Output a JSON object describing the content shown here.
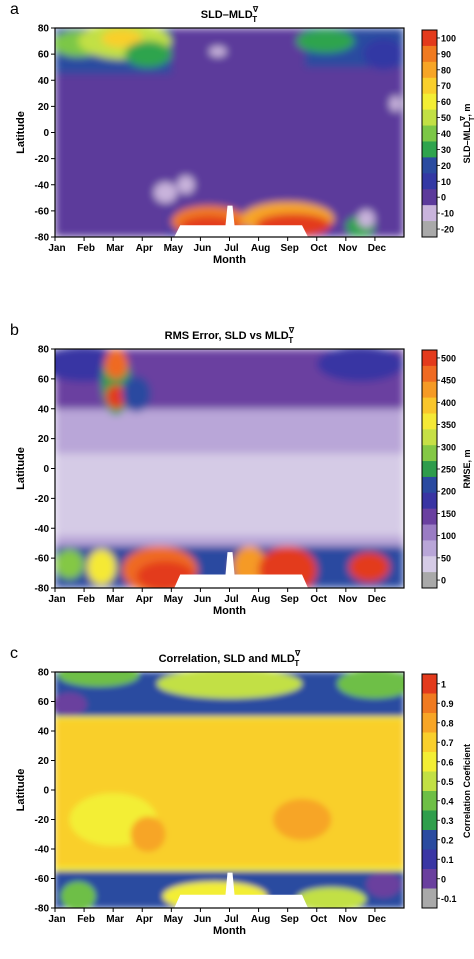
{
  "chart_data": [
    {
      "type": "heatmap",
      "panel_letter": "a",
      "title": "SLD–MLD",
      "title_sub": "T",
      "title_sup": "∇",
      "xlabel": "Month",
      "ylabel": "Latitude",
      "x_tick_labels": [
        "Jan",
        "Feb",
        "Mar",
        "Apr",
        "May",
        "Jun",
        "Jul",
        "Aug",
        "Sep",
        "Oct",
        "Nov",
        "Dec"
      ],
      "y_ticks": [
        80,
        60,
        40,
        20,
        0,
        -20,
        -40,
        -60,
        -80
      ],
      "xlim": [
        0,
        12
      ],
      "ylim": [
        -80,
        80
      ],
      "colorbar": {
        "label": "SLD–MLD",
        "label_sub": "T",
        "label_sup": "∇",
        "label_unit": ", m",
        "tick_values": [
          100,
          90,
          80,
          70,
          60,
          50,
          40,
          30,
          20,
          10,
          0,
          -10,
          -20
        ],
        "colors": [
          "#e33a1c",
          "#f07a20",
          "#f7a526",
          "#f9cf2c",
          "#f3ee34",
          "#c2e044",
          "#7cc746",
          "#2fa44d",
          "#2a4ba0",
          "#3338a4",
          "#5c3a9b",
          "#c9b4dc",
          "#a9a9a9"
        ],
        "contour_value": 0
      },
      "field_description": "Mostly 0–10 m (purple) at mid/low latitudes; positive 30–100 m north of 40N in Jan–Apr and Sep–Dec; large positive (red, >90 m) south of 50S during May–Oct; small negative (light lavender) patches near 40–60S",
      "masked_region": "white region, no data, south of ~70S from May to Sep"
    },
    {
      "type": "heatmap",
      "panel_letter": "b",
      "title": "RMS Error, SLD vs MLD",
      "title_sub": "T",
      "title_sup": "∇",
      "xlabel": "Month",
      "ylabel": "Latitude",
      "x_tick_labels": [
        "Jan",
        "Feb",
        "Mar",
        "Apr",
        "May",
        "Jun",
        "Jul",
        "Aug",
        "Sep",
        "Oct",
        "Nov",
        "Dec"
      ],
      "y_ticks": [
        80,
        60,
        40,
        20,
        0,
        -20,
        -40,
        -60,
        -80
      ],
      "xlim": [
        0,
        12
      ],
      "ylim": [
        -80,
        80
      ],
      "colorbar": {
        "label": "RMSE, m",
        "tick_values": [
          500,
          450,
          400,
          350,
          300,
          250,
          200,
          150,
          100,
          50,
          0
        ],
        "colors": [
          "#e33a1c",
          "#ef6a22",
          "#f59a25",
          "#f9c62b",
          "#f5e936",
          "#c6e046",
          "#84c845",
          "#2e9c4c",
          "#2a4aa0",
          "#3934a3",
          "#6a40a0",
          "#9a7cc4",
          "#b9a6d8",
          "#d5cbe6",
          "#a9a9a9"
        ],
        "contour_value": 0
      },
      "field_description": "Low RMSE (0–50 m, light lavender) over most latitudes; 100–250 m (blue/purple) poleward of 40N and near 60S; very high (red, >400 m) south of 50S from May to Nov, and around 40–80N in March",
      "masked_region": "white region, no data, south of ~70S from May to Sep"
    },
    {
      "type": "heatmap",
      "panel_letter": "c",
      "title": "Correlation, SLD and MLD",
      "title_sub": "T",
      "title_sup": "∇",
      "xlabel": "Month",
      "ylabel": "Latitude",
      "x_tick_labels": [
        "Jan",
        "Feb",
        "Mar",
        "Apr",
        "May",
        "Jun",
        "Jul",
        "Aug",
        "Sep",
        "Oct",
        "Nov",
        "Dec"
      ],
      "y_ticks": [
        80,
        60,
        40,
        20,
        0,
        -20,
        -40,
        -60,
        -80
      ],
      "xlim": [
        0,
        12
      ],
      "ylim": [
        -80,
        80
      ],
      "colorbar": {
        "label": "Correlation Coeficient",
        "tick_values": [
          1,
          0.9,
          0.8,
          0.7,
          0.6,
          0.5,
          0.4,
          0.3,
          0.2,
          0.1,
          0,
          -0.1
        ],
        "colors": [
          "#e33a1c",
          "#f07a20",
          "#f7a526",
          "#f9cf2c",
          "#f3ee34",
          "#c2e044",
          "#6ebf46",
          "#2f9e4c",
          "#2a4ba0",
          "#3a36a4",
          "#6a3f9e",
          "#a9a9a9"
        ],
        "contour_value": 0
      },
      "field_description": "High correlation (0.6–0.8, yellow/orange) between 50S and 40N; 0.2–0.5 (blue/green) poleward of 40N and south of 50S; low correlation (0–0.2) near 60S and near 70N in winter",
      "masked_region": "white region, no data, south of ~70S from May to Sep"
    }
  ]
}
